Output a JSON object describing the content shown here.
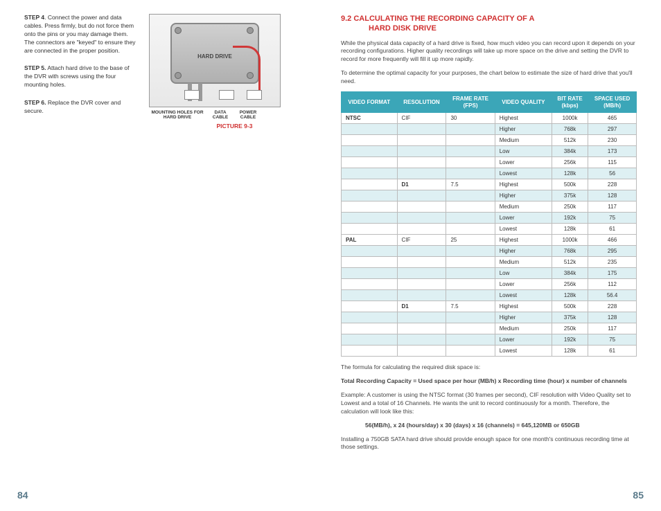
{
  "leftPage": {
    "steps": [
      {
        "label": "STEP 4",
        "text": ". Connect the power and data cables. Press firmly, but do not force them onto the pins or you may damage them. The connectors are \"keyed\" to ensure they are connected in the proper position."
      },
      {
        "label": "STEP 5.",
        "text": " Attach hard drive to the base of the DVR with screws using the four mounting holes."
      },
      {
        "label": "STEP 6.",
        "text": " Replace the DVR cover and secure."
      }
    ],
    "diagram": {
      "hdLabel": "HARD DRIVE",
      "labels": [
        "MOUNTING HOLES FOR HARD DRIVE",
        "DATA CABLE",
        "POWER CABLE"
      ],
      "caption": "PICTURE 9-3"
    },
    "pageNumber": "84"
  },
  "rightPage": {
    "heading": "9.2 CALCULATING THE RECORDING CAPACITY OF A",
    "headingLine2": "HARD DISK DRIVE",
    "intro1": "While the physical data capacity of a hard drive is fixed, how much video you can record upon it depends on your recording configurations. Higher quality recordings will take up more space on the drive and setting the DVR to record for more frequently will fill it up more rapidly.",
    "intro2": "To determine the optimal capacity for your purposes, the chart below to estimate the size of hard drive that you'll need.",
    "table": {
      "headers": [
        "VIDEO FORMAT",
        "RESOLUTION",
        "FRAME RATE (FPS)",
        "VIDEO QUALITY",
        "BIT RATE (kbps)",
        "SPACE USED (MB/h)"
      ],
      "rows": [
        {
          "alt": false,
          "c": [
            "NTSC",
            "CIF",
            "30",
            "Highest",
            "1000k",
            "465"
          ],
          "bold0": true
        },
        {
          "alt": true,
          "c": [
            "",
            "",
            "",
            "Higher",
            "768k",
            "297"
          ]
        },
        {
          "alt": false,
          "c": [
            "",
            "",
            "",
            "Medium",
            "512k",
            "230"
          ]
        },
        {
          "alt": true,
          "c": [
            "",
            "",
            "",
            "Low",
            "384k",
            "173"
          ]
        },
        {
          "alt": false,
          "c": [
            "",
            "",
            "",
            "Lower",
            "256k",
            "115"
          ]
        },
        {
          "alt": true,
          "c": [
            "",
            "",
            "",
            "Lowest",
            "128k",
            "56"
          ]
        },
        {
          "alt": false,
          "c": [
            "",
            "D1",
            "7.5",
            "Highest",
            "500k",
            "228"
          ],
          "bold1": true
        },
        {
          "alt": true,
          "c": [
            "",
            "",
            "",
            "Higher",
            "375k",
            "128"
          ]
        },
        {
          "alt": false,
          "c": [
            "",
            "",
            "",
            "Medium",
            "250k",
            "117"
          ]
        },
        {
          "alt": true,
          "c": [
            "",
            "",
            "",
            "Lower",
            "192k",
            "75"
          ]
        },
        {
          "alt": false,
          "c": [
            "",
            "",
            "",
            "Lowest",
            "128k",
            "61"
          ]
        },
        {
          "alt": false,
          "c": [
            "PAL",
            "CIF",
            "25",
            "Highest",
            "1000k",
            "466"
          ],
          "bold0": true
        },
        {
          "alt": true,
          "c": [
            "",
            "",
            "",
            "Higher",
            "768k",
            "295"
          ]
        },
        {
          "alt": false,
          "c": [
            "",
            "",
            "",
            "Medium",
            "512k",
            "235"
          ]
        },
        {
          "alt": true,
          "c": [
            "",
            "",
            "",
            "Low",
            "384k",
            "175"
          ]
        },
        {
          "alt": false,
          "c": [
            "",
            "",
            "",
            "Lower",
            "256k",
            "112"
          ]
        },
        {
          "alt": true,
          "c": [
            "",
            "",
            "",
            "Lowest",
            "128k",
            "56.4"
          ]
        },
        {
          "alt": false,
          "c": [
            "",
            "D1",
            "7.5",
            "Highest",
            "500k",
            "228"
          ],
          "bold1": true
        },
        {
          "alt": true,
          "c": [
            "",
            "",
            "",
            "Higher",
            "375k",
            "128"
          ]
        },
        {
          "alt": false,
          "c": [
            "",
            "",
            "",
            "Medium",
            "250k",
            "117"
          ]
        },
        {
          "alt": true,
          "c": [
            "",
            "",
            "",
            "Lower",
            "192k",
            "75"
          ]
        },
        {
          "alt": false,
          "c": [
            "",
            "",
            "",
            "Lowest",
            "128k",
            "61"
          ]
        }
      ]
    },
    "formula1": "The formula for calculating the required disk space is:",
    "formula2": "Total Recording Capacity = Used space per hour (MB/h) x Recording time (hour) x number of channels",
    "example1": "Example: A customer is using the NTSC format (30 frames per second), CIF resolution with Video Quality set to Lowest and a total of 16 Channels. He wants the unit to record continuously for a month. Therefore, the calculation will look like this:",
    "example2": "56(MB/h), x 24 (hours/day) x 30 (days) x 16 (channels) = 645,120MB or 650GB",
    "closing": "Installing a 750GB SATA hard drive should provide enough space for one month's continuous recording time at those settings.",
    "pageNumber": "85"
  }
}
